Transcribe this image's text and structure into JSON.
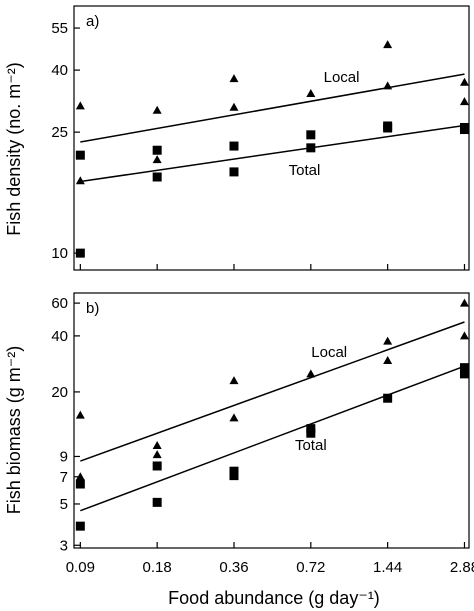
{
  "chart_data": [
    {
      "type": "scatter",
      "panel_label": "a)",
      "ylabel": "Fish density (no. m⁻²)",
      "xlabel": "",
      "x_scale": "log",
      "y_scale": "log",
      "xlim": [
        0.085,
        3.0
      ],
      "ylim": [
        8.8,
        65
      ],
      "x_ticks": [
        0.09,
        0.18,
        0.36,
        0.72,
        1.44,
        2.88
      ],
      "x_tick_labels": [
        "0.09",
        "0.18",
        "0.36",
        "0.72",
        "1.44",
        "2.88"
      ],
      "y_ticks": [
        10,
        25,
        40,
        55
      ],
      "y_tick_labels": [
        "10",
        "25",
        "40",
        "55"
      ],
      "series": [
        {
          "name": "Local",
          "marker": "triangle",
          "x": [
            0.09,
            0.09,
            0.18,
            0.18,
            0.36,
            0.36,
            0.72,
            1.44,
            1.44,
            2.88,
            2.88
          ],
          "y": [
            30.5,
            17.3,
            29.5,
            20.3,
            37.5,
            30.2,
            33.5,
            48.5,
            35.5,
            36.5,
            31.5
          ]
        },
        {
          "name": "Total",
          "marker": "square",
          "x": [
            0.09,
            0.09,
            0.18,
            0.18,
            0.36,
            0.36,
            0.72,
            0.72,
            1.44,
            1.44,
            2.88,
            2.88
          ],
          "y": [
            21.0,
            10.0,
            21.8,
            17.8,
            22.5,
            18.5,
            24.5,
            22.2,
            26.2,
            25.8,
            25.9,
            25.5
          ]
        }
      ],
      "fits": [
        {
          "series": "Local",
          "x": [
            0.09,
            2.88
          ],
          "y": [
            23.2,
            38.8
          ]
        },
        {
          "series": "Total",
          "x": [
            0.09,
            2.88
          ],
          "y": [
            17.2,
            26.3
          ]
        }
      ]
    },
    {
      "type": "scatter",
      "panel_label": "b)",
      "ylabel": "Fish biomass (g m⁻²)",
      "xlabel": "Food abundance (g day⁻¹)",
      "x_scale": "log",
      "y_scale": "log",
      "xlim": [
        0.085,
        3.0
      ],
      "ylim": [
        2.9,
        68
      ],
      "x_ticks": [
        0.09,
        0.18,
        0.36,
        0.72,
        1.44,
        2.88
      ],
      "x_tick_labels": [
        "0.09",
        "0.18",
        "0.36",
        "0.72",
        "1.44",
        "2.88"
      ],
      "y_ticks": [
        3,
        5,
        7,
        9,
        20,
        40,
        60
      ],
      "y_tick_labels": [
        "3",
        "5",
        "7",
        "9",
        "20",
        "40",
        "60"
      ],
      "series": [
        {
          "name": "Local",
          "marker": "triangle",
          "x": [
            0.09,
            0.09,
            0.18,
            0.18,
            0.36,
            0.36,
            0.72,
            1.44,
            1.44,
            2.88,
            2.88
          ],
          "y": [
            15.0,
            7.0,
            10.3,
            9.2,
            23.0,
            14.5,
            25.0,
            37.5,
            29.5,
            60.0,
            40.0
          ]
        },
        {
          "name": "Total",
          "marker": "square",
          "x": [
            0.09,
            0.09,
            0.18,
            0.18,
            0.36,
            0.36,
            0.72,
            0.72,
            1.44,
            2.88,
            2.88
          ],
          "y": [
            6.4,
            3.8,
            8.0,
            5.1,
            7.5,
            7.1,
            12.7,
            12.0,
            18.5,
            27.0,
            25.0
          ]
        }
      ],
      "fits": [
        {
          "series": "Local",
          "x": [
            0.09,
            2.88
          ],
          "y": [
            8.5,
            47.5
          ]
        },
        {
          "series": "Total",
          "x": [
            0.09,
            2.88
          ],
          "y": [
            4.6,
            27.5
          ]
        }
      ]
    }
  ]
}
